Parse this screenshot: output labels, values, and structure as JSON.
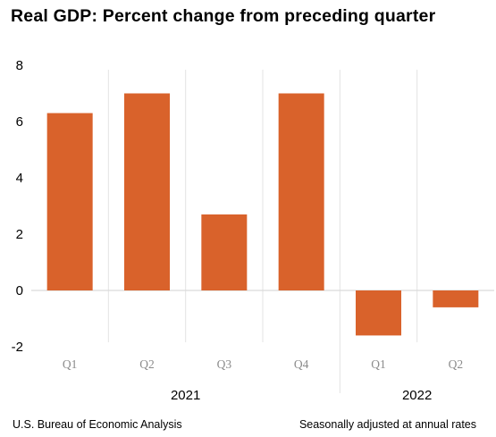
{
  "title": "Real GDP:  Percent change from preceding quarter",
  "footer": {
    "source": "U.S. Bureau of Economic Analysis",
    "note": "Seasonally adjusted at annual rates"
  },
  "chart_data": {
    "type": "bar",
    "title": "Real GDP:  Percent change from preceding quarter",
    "categories": [
      "Q1",
      "Q2",
      "Q3",
      "Q4",
      "Q1",
      "Q2"
    ],
    "values": [
      6.3,
      7.0,
      2.7,
      7.0,
      -1.6,
      -0.6
    ],
    "groups": [
      {
        "label": "2021",
        "count": 4
      },
      {
        "label": "2022",
        "count": 2
      }
    ],
    "yticks": [
      -2,
      0,
      2,
      4,
      6,
      8
    ],
    "ylim": [
      -2,
      8
    ],
    "xlabel": "",
    "ylabel": "",
    "grid": false,
    "bar_color": "#D9622B"
  }
}
